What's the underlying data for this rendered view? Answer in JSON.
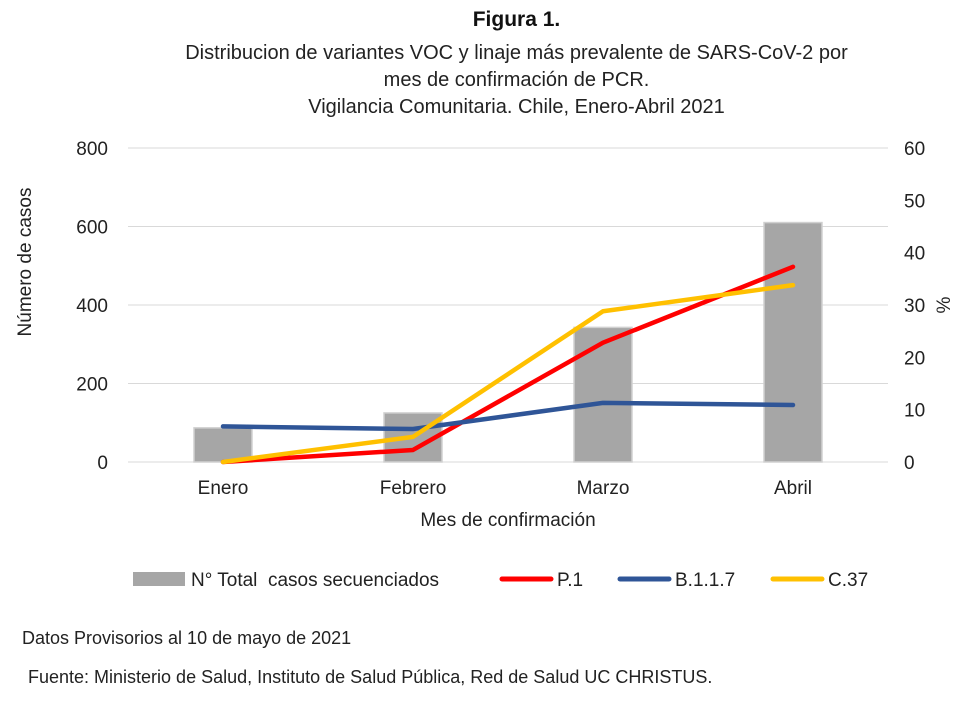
{
  "figure_label": "Figura 1.",
  "title_lines": [
    "Distribucion de variantes VOC y linaje más prevalente de SARS-CoV-2 por",
    "mes de confirmación de PCR.",
    "Vigilancia Comunitaria. Chile, Enero-Abril 2021"
  ],
  "notes": {
    "provisional": "Datos Provisorios al 10 de mayo de 2021",
    "source": "Fuente: Ministerio de Salud, Instituto de Salud Pública, Red de Salud UC CHRISTUS."
  },
  "chart_data": {
    "type": "bar+line",
    "categories": [
      "Enero",
      "Febrero",
      "Marzo",
      "Abril"
    ],
    "xlabel": "Mes de confirmación",
    "ylabel": "Número de casos",
    "y2label": "%",
    "ylim": [
      0,
      800
    ],
    "yticks": [
      0,
      200,
      400,
      600,
      800
    ],
    "y2lim": [
      0,
      60
    ],
    "y2ticks": [
      0,
      10,
      20,
      30,
      40,
      50,
      60
    ],
    "grid": true,
    "legend_position": "bottom",
    "bars": {
      "name": "N° Total  casos secuenciados",
      "color": "#a6a6a6",
      "values": [
        87,
        125,
        343,
        610
      ]
    },
    "series": [
      {
        "name": "P.1",
        "axis": "right",
        "color": "#ff0000",
        "values": [
          0,
          2.3,
          22.8,
          37.3
        ]
      },
      {
        "name": "B.1.1.7",
        "axis": "right",
        "color": "#2f5597",
        "values": [
          6.8,
          6.3,
          11.3,
          10.9
        ]
      },
      {
        "name": "C.37",
        "axis": "right",
        "color": "#ffc000",
        "values": [
          0,
          4.8,
          28.8,
          33.8
        ]
      }
    ]
  }
}
